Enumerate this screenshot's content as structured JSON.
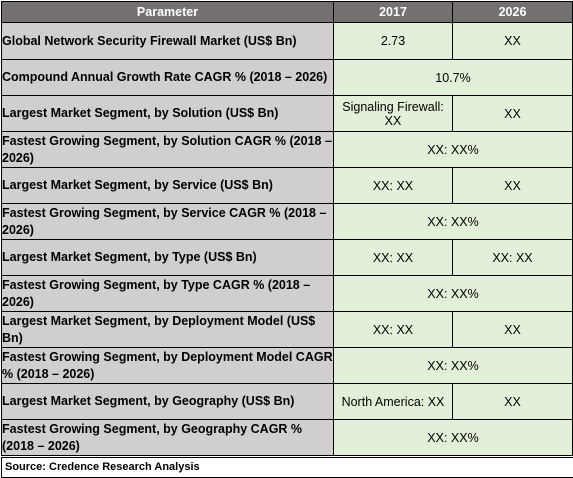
{
  "header": {
    "col_parameter": "Parameter",
    "col_2017": "2017",
    "col_2026": "2026"
  },
  "rows": [
    {
      "param": "Global Network Security Firewall Market (US$ Bn)",
      "v2017": "2.73",
      "v2026": "XX"
    },
    {
      "param": "Compound Annual Growth Rate CAGR % (2018 – 2026)",
      "merged": "10.7%"
    },
    {
      "param": "Largest Market Segment, by Solution (US$ Bn)",
      "v2017": "Signaling Firewall: XX",
      "v2026": "XX"
    },
    {
      "param": "Fastest Growing Segment, by Solution CAGR % (2018 – 2026)",
      "merged": "XX: XX%"
    },
    {
      "param": "Largest Market Segment, by Service (US$ Bn)",
      "v2017": "XX: XX",
      "v2026": "XX"
    },
    {
      "param": "Fastest Growing Segment, by Service CAGR % (2018 – 2026)",
      "merged": "XX: XX%"
    },
    {
      "param": "Largest Market Segment, by Type (US$ Bn)",
      "v2017": "XX: XX",
      "v2026": "XX: XX"
    },
    {
      "param": "Fastest Growing Segment, by Type CAGR % (2018 – 2026)",
      "merged": "XX: XX%"
    },
    {
      "param": "Largest Market Segment, by Deployment Model (US$ Bn)",
      "v2017": "XX: XX",
      "v2026": "XX"
    },
    {
      "param": "Fastest Growing Segment, by Deployment Model CAGR % (2018 – 2026)",
      "merged": "XX: XX%"
    },
    {
      "param": "Largest Market Segment, by Geography (US$ Bn)",
      "v2017": "North America: XX",
      "v2026": "XX"
    },
    {
      "param": "Fastest Growing Segment, by Geography CAGR % (2018 – 2026)",
      "merged": "XX: XX%"
    }
  ],
  "source": "Source: Credence Research Analysis",
  "colors": {
    "header_bg": "#767171",
    "param_bg": "#d0cece",
    "value_bg": "#e2efd9"
  }
}
